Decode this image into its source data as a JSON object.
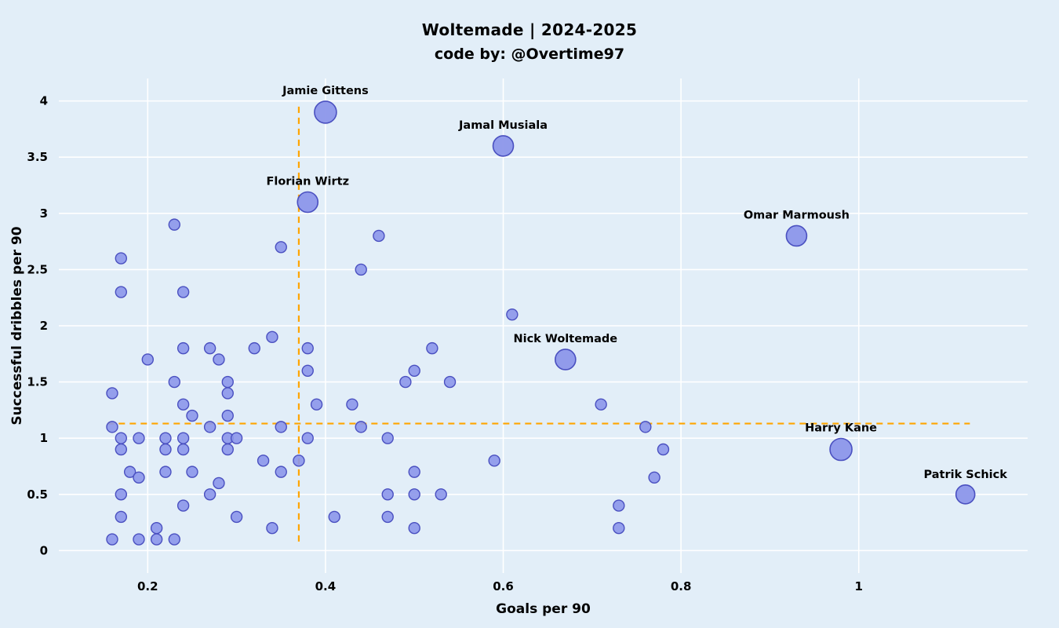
{
  "header": {
    "title": "Woltemade | 2024-2025",
    "subtitle": "code by: @Overtime97"
  },
  "chart_data": {
    "type": "scatter",
    "title": "Woltemade | 2024-2025",
    "subtitle": "code by: @Overtime97",
    "xlabel": "Goals per 90",
    "ylabel": "Successful dribbles per 90",
    "xlim": [
      0.1,
      1.19
    ],
    "ylim": [
      -0.2,
      4.2
    ],
    "xticks": [
      0.2,
      0.4,
      0.6,
      0.8,
      1
    ],
    "xtick_labels": [
      "0.2",
      "0.4",
      "0.6",
      "0.8",
      "1"
    ],
    "yticks": [
      0,
      0.5,
      1,
      1.5,
      2,
      2.5,
      3,
      3.5,
      4
    ],
    "ytick_labels": [
      "0",
      "0.5",
      "1",
      "1.5",
      "2",
      "2.5",
      "3",
      "3.5",
      "4"
    ],
    "grid": true,
    "legend": "none",
    "colors": {
      "background": "#e2eef8",
      "grid": "#ffffff",
      "point_fill": "#8c96ea",
      "point_stroke": "#4a50c0",
      "dashed_line": "#FFA500",
      "text": "#000000"
    },
    "crosshair": {
      "vline": {
        "x": 0.37,
        "y_from": 0.08,
        "y_to": 3.97
      },
      "hline": {
        "y": 1.13,
        "x_from": 0.155,
        "x_to": 1.125
      }
    },
    "labeled_points": [
      {
        "name": "Jamie Gittens",
        "x": 0.4,
        "y": 3.9,
        "r": 14
      },
      {
        "name": "Jamal Musiala",
        "x": 0.6,
        "y": 3.6,
        "r": 13
      },
      {
        "name": "Florian Wirtz",
        "x": 0.38,
        "y": 3.1,
        "r": 13
      },
      {
        "name": "Omar Marmoush",
        "x": 0.93,
        "y": 2.8,
        "r": 13
      },
      {
        "name": "Nick Woltemade",
        "x": 0.67,
        "y": 1.7,
        "r": 13
      },
      {
        "name": "Harry Kane",
        "x": 0.98,
        "y": 0.9,
        "r": 14
      },
      {
        "name": "Patrik Schick",
        "x": 1.12,
        "y": 0.5,
        "r": 12
      }
    ],
    "points": [
      [
        0.17,
        2.6
      ],
      [
        0.17,
        2.3
      ],
      [
        0.23,
        2.9
      ],
      [
        0.24,
        2.3
      ],
      [
        0.35,
        2.7
      ],
      [
        0.44,
        2.5
      ],
      [
        0.46,
        2.8
      ],
      [
        0.61,
        2.1
      ],
      [
        0.34,
        1.9
      ],
      [
        0.24,
        1.8
      ],
      [
        0.27,
        1.8
      ],
      [
        0.32,
        1.8
      ],
      [
        0.38,
        1.8
      ],
      [
        0.52,
        1.8
      ],
      [
        0.2,
        1.7
      ],
      [
        0.28,
        1.7
      ],
      [
        0.38,
        1.6
      ],
      [
        0.5,
        1.6
      ],
      [
        0.49,
        1.5
      ],
      [
        0.54,
        1.5
      ],
      [
        0.23,
        1.5
      ],
      [
        0.29,
        1.5
      ],
      [
        0.16,
        1.4
      ],
      [
        0.29,
        1.4
      ],
      [
        0.24,
        1.3
      ],
      [
        0.39,
        1.3
      ],
      [
        0.43,
        1.3
      ],
      [
        0.71,
        1.3
      ],
      [
        0.25,
        1.2
      ],
      [
        0.29,
        1.2
      ],
      [
        0.16,
        1.1
      ],
      [
        0.27,
        1.1
      ],
      [
        0.35,
        1.1
      ],
      [
        0.44,
        1.1
      ],
      [
        0.76,
        1.1
      ],
      [
        0.17,
        1.0
      ],
      [
        0.19,
        1.0
      ],
      [
        0.22,
        1.0
      ],
      [
        0.24,
        1.0
      ],
      [
        0.29,
        1.0
      ],
      [
        0.3,
        1.0
      ],
      [
        0.38,
        1.0
      ],
      [
        0.47,
        1.0
      ],
      [
        0.17,
        0.9
      ],
      [
        0.22,
        0.9
      ],
      [
        0.24,
        0.9
      ],
      [
        0.29,
        0.9
      ],
      [
        0.78,
        0.9
      ],
      [
        0.33,
        0.8
      ],
      [
        0.37,
        0.8
      ],
      [
        0.59,
        0.8
      ],
      [
        0.18,
        0.7
      ],
      [
        0.22,
        0.7
      ],
      [
        0.25,
        0.7
      ],
      [
        0.35,
        0.7
      ],
      [
        0.5,
        0.7
      ],
      [
        0.77,
        0.65
      ],
      [
        0.19,
        0.65
      ],
      [
        0.28,
        0.6
      ],
      [
        0.17,
        0.5
      ],
      [
        0.27,
        0.5
      ],
      [
        0.47,
        0.5
      ],
      [
        0.5,
        0.5
      ],
      [
        0.53,
        0.5
      ],
      [
        0.24,
        0.4
      ],
      [
        0.73,
        0.4
      ],
      [
        0.17,
        0.3
      ],
      [
        0.3,
        0.3
      ],
      [
        0.41,
        0.3
      ],
      [
        0.47,
        0.3
      ],
      [
        0.21,
        0.2
      ],
      [
        0.34,
        0.2
      ],
      [
        0.5,
        0.2
      ],
      [
        0.73,
        0.2
      ],
      [
        0.16,
        0.1
      ],
      [
        0.19,
        0.1
      ],
      [
        0.21,
        0.1
      ],
      [
        0.23,
        0.1
      ]
    ]
  }
}
